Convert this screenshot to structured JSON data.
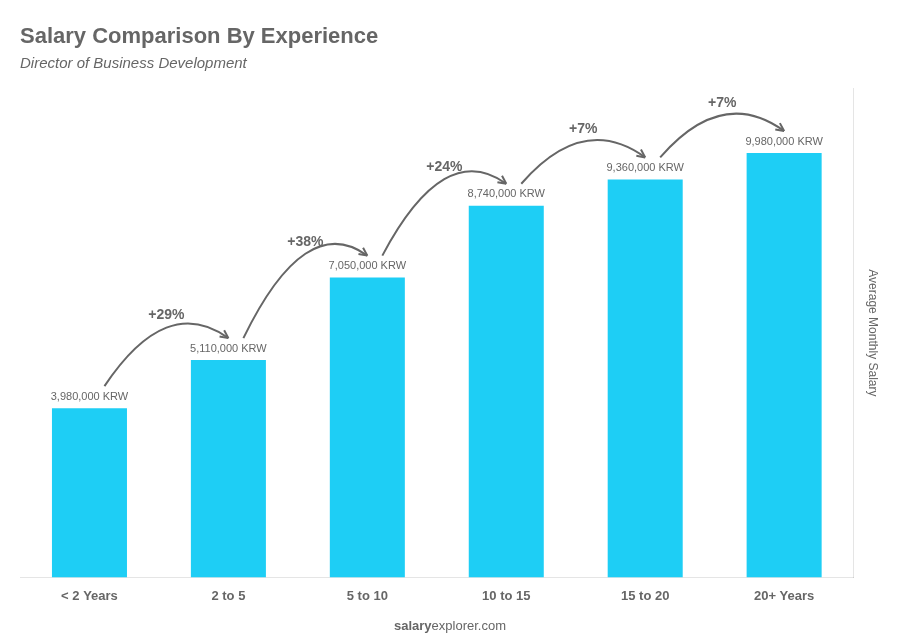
{
  "chart_data": {
    "type": "bar",
    "title": "Salary Comparison By Experience",
    "subtitle": "Director of Business Development",
    "categories": [
      "< 2 Years",
      "2 to 5",
      "5 to 10",
      "10 to 15",
      "15 to 20",
      "20+ Years"
    ],
    "values": [
      3980000,
      5110000,
      7050000,
      8740000,
      9360000,
      9980000
    ],
    "value_labels": [
      "3,980,000 KRW",
      "5,110,000 KRW",
      "7,050,000 KRW",
      "8,740,000 KRW",
      "9,360,000 KRW",
      "9,980,000 KRW"
    ],
    "data_labels": true,
    "annotations": [
      "+29%",
      "+38%",
      "+24%",
      "+7%",
      "+7%"
    ],
    "ylabel": "Average Monthly Salary",
    "footer": [
      "salary",
      "explorer.com"
    ],
    "color": "#1ECEF5",
    "ylim": [
      0,
      11500000
    ],
    "grid": false,
    "tick_labels": "x",
    "legend": false
  }
}
